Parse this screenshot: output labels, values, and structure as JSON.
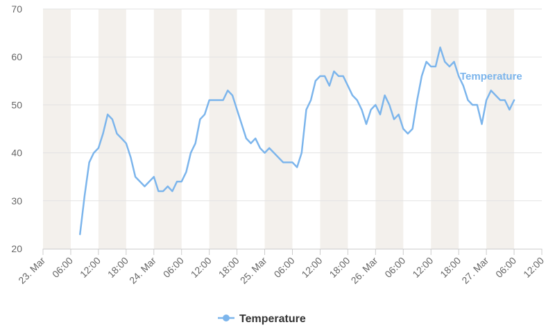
{
  "chart_data": {
    "type": "line",
    "title": "",
    "xlabel": "",
    "ylabel": "",
    "ylim": [
      20,
      70
    ],
    "y_ticks": [
      20,
      30,
      40,
      50,
      60,
      70
    ],
    "x_range_hours": [
      0,
      108
    ],
    "x_ticks": [
      {
        "label": "23. Mar",
        "hour": 0
      },
      {
        "label": "06:00",
        "hour": 6
      },
      {
        "label": "12:00",
        "hour": 12
      },
      {
        "label": "18:00",
        "hour": 18
      },
      {
        "label": "24. Mar",
        "hour": 24
      },
      {
        "label": "06:00",
        "hour": 30
      },
      {
        "label": "12:00",
        "hour": 36
      },
      {
        "label": "18:00",
        "hour": 42
      },
      {
        "label": "25. Mar",
        "hour": 48
      },
      {
        "label": "06:00",
        "hour": 54
      },
      {
        "label": "12:00",
        "hour": 60
      },
      {
        "label": "18:00",
        "hour": 66
      },
      {
        "label": "26. Mar",
        "hour": 72
      },
      {
        "label": "06:00",
        "hour": 78
      },
      {
        "label": "12:00",
        "hour": 84
      },
      {
        "label": "18:00",
        "hour": 90
      },
      {
        "label": "27. Mar",
        "hour": 96
      },
      {
        "label": "06:00",
        "hour": 102
      },
      {
        "label": "12:00",
        "hour": 108
      }
    ],
    "shaded_bands_hours": [
      [
        0,
        6
      ],
      [
        12,
        18
      ],
      [
        24,
        30
      ],
      [
        36,
        42
      ],
      [
        48,
        54
      ],
      [
        60,
        66
      ],
      [
        72,
        78
      ],
      [
        84,
        90
      ],
      [
        96,
        102
      ]
    ],
    "grid": true,
    "legend_position": "bottom-center",
    "series_color": "#7cb5ec",
    "series": [
      {
        "name": "Temperature",
        "x": [
          8,
          9,
          10,
          11,
          12,
          13,
          14,
          15,
          16,
          17,
          18,
          19,
          20,
          21,
          22,
          23,
          24,
          25,
          26,
          27,
          28,
          29,
          30,
          31,
          32,
          33,
          34,
          35,
          36,
          37,
          38,
          39,
          40,
          41,
          42,
          43,
          44,
          45,
          46,
          47,
          48,
          49,
          50,
          51,
          52,
          53,
          54,
          55,
          56,
          57,
          58,
          59,
          60,
          61,
          62,
          63,
          64,
          65,
          66,
          67,
          68,
          69,
          70,
          71,
          72,
          73,
          74,
          75,
          76,
          77,
          78,
          79,
          80,
          81,
          82,
          83,
          84,
          85,
          86,
          87,
          88,
          89,
          90,
          91,
          92,
          93,
          94,
          95,
          96,
          97,
          98,
          99,
          100,
          101,
          102
        ],
        "values": [
          23,
          31,
          38,
          40,
          41,
          44,
          48,
          47,
          44,
          43,
          42,
          39,
          35,
          34,
          33,
          34,
          35,
          32,
          32,
          33,
          32,
          34,
          34,
          36,
          40,
          42,
          47,
          48,
          51,
          51,
          51,
          51,
          53,
          52,
          49,
          46,
          43,
          42,
          43,
          41,
          40,
          41,
          40,
          39,
          38,
          38,
          38,
          37,
          40,
          49,
          51,
          55,
          56,
          56,
          54,
          57,
          56,
          56,
          54,
          52,
          51,
          49,
          46,
          49,
          50,
          48,
          52,
          50,
          47,
          48,
          45,
          44,
          45,
          51,
          56,
          59,
          58,
          58,
          62,
          59,
          58,
          59,
          56,
          54,
          51,
          50,
          50,
          46,
          51,
          53,
          52,
          51,
          51,
          49,
          51
        ]
      }
    ]
  }
}
